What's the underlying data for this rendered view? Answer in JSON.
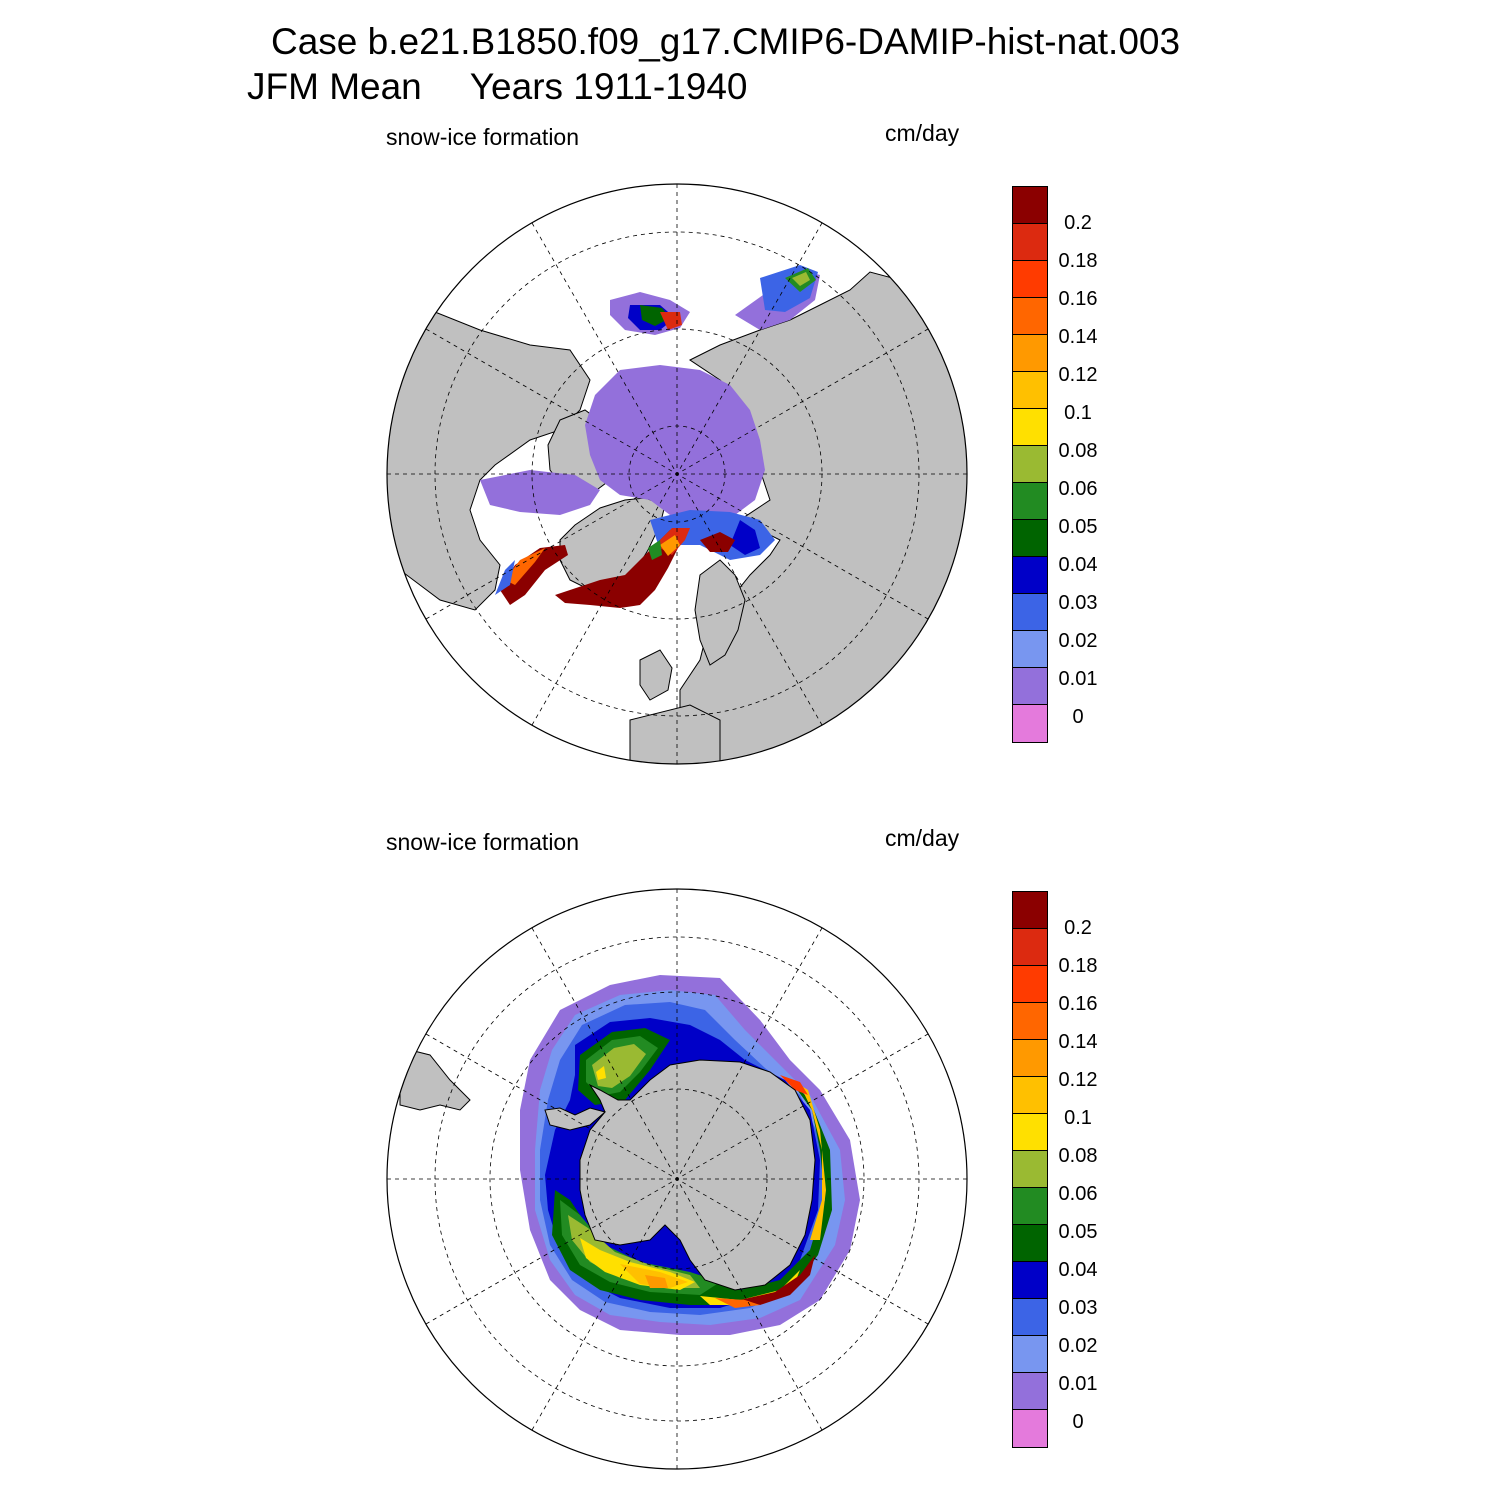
{
  "title": {
    "case_line": "Case b.e21.B1850.f09_g17.CMIP6-DAMIP-hist-nat.003",
    "season": "JFM Mean",
    "years": "Years 1911-1940"
  },
  "colorbar": {
    "labels": [
      "0.2",
      "0.18",
      "0.16",
      "0.14",
      "0.12",
      "0.1",
      "0.08",
      "0.06",
      "0.05",
      "0.04",
      "0.03",
      "0.02",
      "0.01",
      "0"
    ],
    "colors": [
      "#8b0000",
      "#dc2a10",
      "#ff3b00",
      "#ff6600",
      "#ff9900",
      "#ffc000",
      "#ffe000",
      "#9aba32",
      "#228b22",
      "#006400",
      "#0000c8",
      "#3c64e6",
      "#7896f0",
      "#9370db",
      "#e47adc"
    ]
  },
  "colors": {
    "land": "#c0c0c0",
    "ocean": "#ffffff"
  },
  "panels": [
    {
      "id": "north",
      "variable": "snow-ice formation",
      "units": "cm/day",
      "hemisphere": "NH"
    },
    {
      "id": "south",
      "variable": "snow-ice formation",
      "units": "cm/day",
      "hemisphere": "SH"
    }
  ]
}
